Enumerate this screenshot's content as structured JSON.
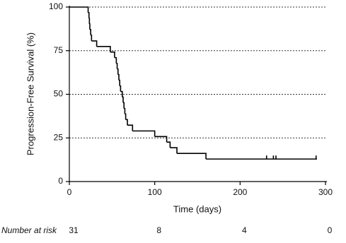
{
  "chart_data": {
    "type": "km",
    "y_label": "Progression-Free Survival (%)",
    "x_label": "Time (days)",
    "xlim": [
      0,
      300
    ],
    "xticks": [
      0,
      100,
      200,
      300
    ],
    "ylim": [
      0,
      100
    ],
    "yticks": [
      0,
      25,
      50,
      75,
      100
    ],
    "grid": true,
    "color": "#000000",
    "x": [
      0,
      22,
      23,
      23.5,
      24,
      25,
      26,
      32,
      48,
      53,
      55,
      56,
      57,
      58,
      59,
      60,
      62,
      63,
      64,
      65,
      66,
      68,
      74,
      100,
      114,
      118,
      126,
      160,
      290
    ],
    "values": [
      100,
      96.8,
      93.5,
      90.3,
      87.1,
      83.9,
      80.6,
      77.4,
      74.2,
      71.0,
      67.7,
      64.5,
      61.3,
      58.1,
      54.8,
      51.6,
      48.4,
      45.2,
      41.9,
      38.7,
      35.5,
      32.3,
      29.0,
      25.8,
      22.6,
      19.4,
      16.1,
      12.9,
      12.9
    ],
    "censored": {
      "x": [
        231,
        239,
        242,
        289
      ],
      "values": [
        12.9,
        12.9,
        12.9,
        12.9
      ]
    },
    "risk_label": "Number at risk",
    "at_risk": [
      31,
      8,
      4,
      0
    ]
  }
}
